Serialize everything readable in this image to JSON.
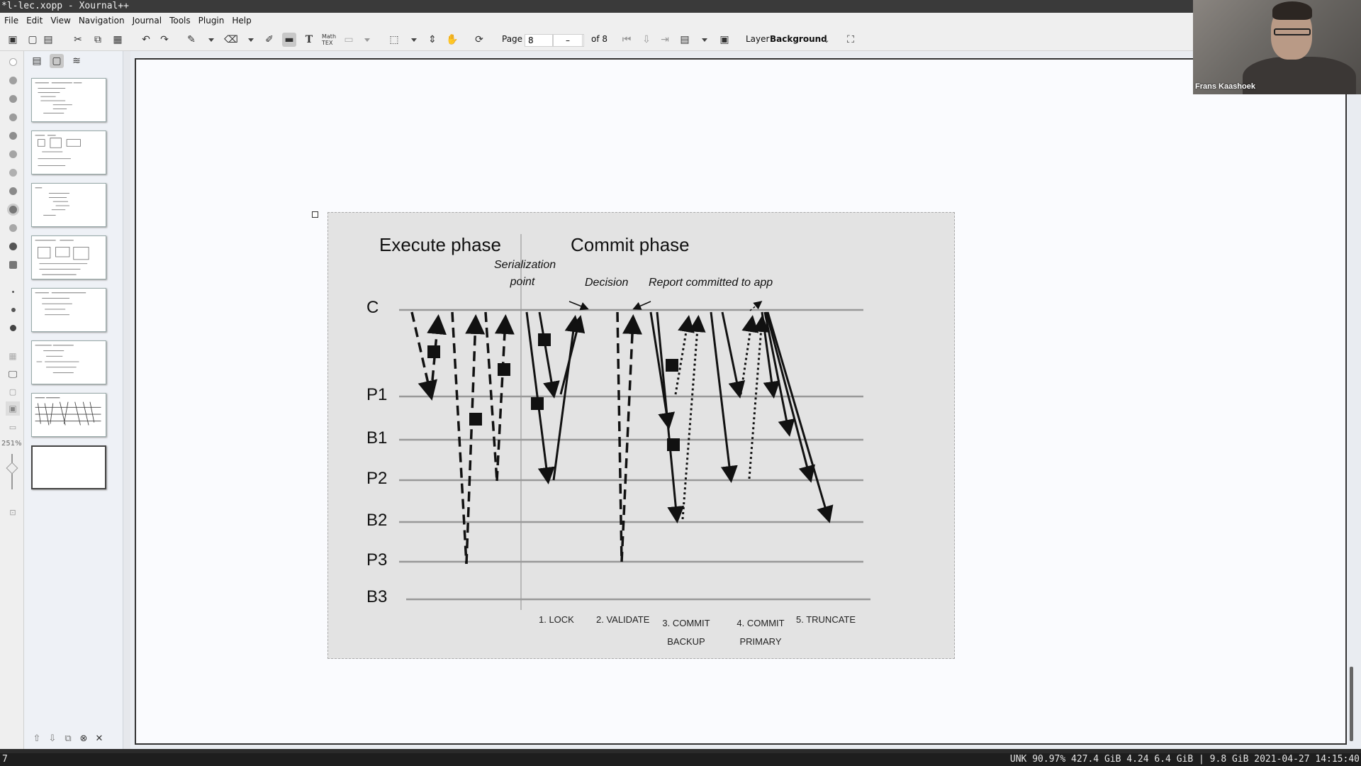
{
  "window": {
    "title": "*l-lec.xopp - Xournal++"
  },
  "menu": [
    "File",
    "Edit",
    "View",
    "Navigation",
    "Journal",
    "Tools",
    "Plugin",
    "Help"
  ],
  "toolbar": {
    "page_label": "Page",
    "page_value": "8",
    "page_stepper_minus": "–",
    "page_total": "of 8",
    "layer_label": "Layer",
    "layer_value": "Background"
  },
  "leftstrip": {
    "zoom": "251%"
  },
  "sidebar": {
    "page_count": 8,
    "current_page": 8
  },
  "webcam": {
    "name": "Frans Kaashoek"
  },
  "figure": {
    "execute_title": "Execute phase",
    "commit_title": "Commit phase",
    "serialization": "Serialization point",
    "decision": "Decision",
    "report": "Report committed to app",
    "rows": [
      "C",
      "P1",
      "B1",
      "P2",
      "B2",
      "P3",
      "B3"
    ],
    "steps": [
      "1. LOCK",
      "2. VALIDATE",
      "3. COMMIT BACKUP",
      "4. COMMIT PRIMARY",
      "5. TRUNCATE"
    ]
  },
  "status": {
    "left": "7",
    "right": "UNK 90.97% 427.4 GiB 4.24 6.4 GiB | 9.8 GiB 2021-04-27 14:15:40"
  }
}
